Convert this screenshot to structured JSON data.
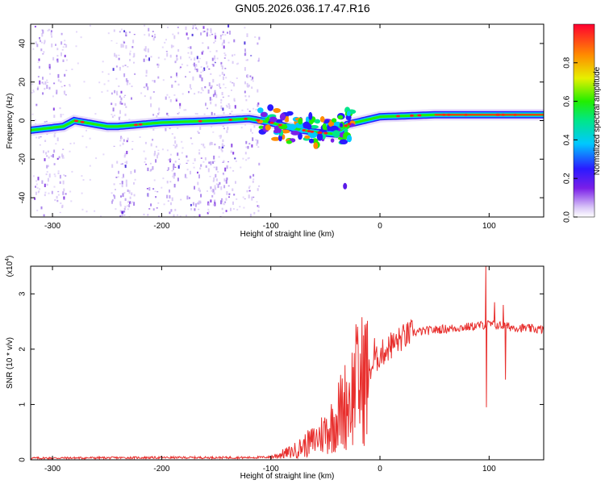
{
  "title": "GN05.2026.036.17.47.R16",
  "colors": {
    "snr_line": "#e8302e",
    "axis": "#000000",
    "speckle": "#7a2be0"
  },
  "chart_data": [
    {
      "type": "heatmap",
      "name": "spectrogram",
      "xlabel": "Height of straight line (km)",
      "ylabel": "Frequency (Hz)",
      "xlim": [
        -320,
        150
      ],
      "ylim": [
        -50,
        50
      ],
      "xticks": [
        -300,
        -200,
        -100,
        0,
        100
      ],
      "yticks": [
        -40,
        -20,
        0,
        20,
        40
      ],
      "colorbar": {
        "label": "Normalized spectral amplitude",
        "range": [
          0.0,
          1.0
        ],
        "ticks": [
          0.0,
          0.2,
          0.4,
          0.6,
          0.8
        ]
      },
      "ridge": {
        "description": "main frequency trace",
        "points": [
          [
            -320,
            -5
          ],
          [
            -290,
            -3
          ],
          [
            -280,
            0
          ],
          [
            -250,
            -3
          ],
          [
            -240,
            -3
          ],
          [
            -200,
            -1
          ],
          [
            -150,
            0
          ],
          [
            -120,
            1
          ],
          [
            -100,
            -1
          ],
          [
            -80,
            -4
          ],
          [
            -60,
            -6
          ],
          [
            -40,
            -7
          ],
          [
            -30,
            -2
          ],
          [
            0,
            2
          ],
          [
            50,
            3
          ],
          [
            150,
            3
          ]
        ]
      }
    },
    {
      "type": "line",
      "name": "snr",
      "xlabel": "Height of straight line (km)",
      "ylabel": "SNR (10 * v/v)",
      "y_multiplier": "(x10",
      "y_multiplier_exp": "4",
      "xlim": [
        -320,
        150
      ],
      "ylim": [
        0,
        3.5
      ],
      "xticks": [
        -300,
        -200,
        -100,
        0,
        100
      ],
      "yticks": [
        0,
        1,
        2,
        3
      ],
      "envelope": [
        [
          -320,
          0.03
        ],
        [
          -200,
          0.04
        ],
        [
          -120,
          0.04
        ],
        [
          -100,
          0.05
        ],
        [
          -80,
          0.15
        ],
        [
          -60,
          0.35
        ],
        [
          -45,
          0.6
        ],
        [
          -35,
          0.9
        ],
        [
          -25,
          1.2
        ],
        [
          -15,
          1.5
        ],
        [
          -10,
          1.6
        ],
        [
          0,
          1.9
        ],
        [
          10,
          2.05
        ],
        [
          20,
          2.2
        ],
        [
          30,
          2.3
        ],
        [
          50,
          2.35
        ],
        [
          80,
          2.4
        ],
        [
          100,
          2.45
        ],
        [
          120,
          2.4
        ],
        [
          150,
          2.35
        ]
      ],
      "spikes": [
        [
          -22,
          2.45
        ],
        [
          -15,
          2.25
        ],
        [
          -5,
          2.2
        ],
        [
          10,
          2.3
        ],
        [
          97,
          3.5
        ],
        [
          97.5,
          0.95
        ],
        [
          105,
          2.85
        ],
        [
          113,
          2.8
        ],
        [
          115,
          1.45
        ]
      ]
    }
  ]
}
